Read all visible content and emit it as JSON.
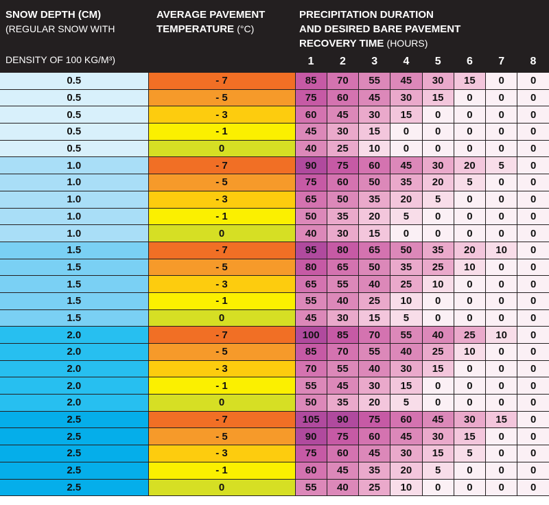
{
  "header": {
    "depth_title": "SNOW DEPTH (CM)",
    "depth_sub1": "(REGULAR SNOW WITH",
    "depth_sub2": "DENSITY OF 100 KG/M³)",
    "temp_title_line1": "AVERAGE PAVEMENT",
    "temp_title_line2": "TEMPERATURE",
    "temp_unit": "(°C)",
    "precip_line1": "PRECIPITATION DURATION",
    "precip_line2": "AND DESIRED BARE PAVEMENT",
    "precip_line3": "RECOVERY TIME",
    "precip_unit": "(HOURS)"
  },
  "hours": [
    "1",
    "2",
    "3",
    "4",
    "5",
    "6",
    "7",
    "8"
  ],
  "colors": {
    "header_bg": "#231f20",
    "depth": {
      "0.5": "#d8f0fb",
      "1.0": "#a9def7",
      "1.5": "#7ad0f4",
      "2.0": "#27bff0",
      "2.5": "#05aeea"
    },
    "temp": {
      "- 7": "#f16f25",
      "- 5": "#f69a2a",
      "- 3": "#fdcc0e",
      "- 1": "#fbf000",
      "0": "#d6df24"
    },
    "value_scale": {
      "0": "#fbf0f5",
      "low": "#f6d0e2",
      "mid": "#ea9dc5",
      "high": "#d46fab",
      "max": "#a6409a"
    }
  },
  "rows": [
    {
      "depth": "0.5",
      "temp": "- 7",
      "values": [
        "85",
        "70",
        "55",
        "45",
        "30",
        "15",
        "0",
        "0"
      ]
    },
    {
      "depth": "0.5",
      "temp": "- 5",
      "values": [
        "75",
        "60",
        "45",
        "30",
        "15",
        "0",
        "0",
        "0"
      ]
    },
    {
      "depth": "0.5",
      "temp": "- 3",
      "values": [
        "60",
        "45",
        "30",
        "15",
        "0",
        "0",
        "0",
        "0"
      ]
    },
    {
      "depth": "0.5",
      "temp": "- 1",
      "values": [
        "45",
        "30",
        "15",
        "0",
        "0",
        "0",
        "0",
        "0"
      ]
    },
    {
      "depth": "0.5",
      "temp": "0",
      "values": [
        "40",
        "25",
        "10",
        "0",
        "0",
        "0",
        "0",
        "0"
      ]
    },
    {
      "depth": "1.0",
      "temp": "- 7",
      "values": [
        "90",
        "75",
        "60",
        "45",
        "30",
        "20",
        "5",
        "0"
      ]
    },
    {
      "depth": "1.0",
      "temp": "- 5",
      "values": [
        "75",
        "60",
        "50",
        "35",
        "20",
        "5",
        "0",
        "0"
      ]
    },
    {
      "depth": "1.0",
      "temp": "- 3",
      "values": [
        "65",
        "50",
        "35",
        "20",
        "5",
        "0",
        "0",
        "0"
      ]
    },
    {
      "depth": "1.0",
      "temp": "- 1",
      "values": [
        "50",
        "35",
        "20",
        "5",
        "0",
        "0",
        "0",
        "0"
      ]
    },
    {
      "depth": "1.0",
      "temp": "0",
      "values": [
        "40",
        "30",
        "15",
        "0",
        "0",
        "0",
        "0",
        "0"
      ]
    },
    {
      "depth": "1.5",
      "temp": "- 7",
      "values": [
        "95",
        "80",
        "65",
        "50",
        "35",
        "20",
        "10",
        "0"
      ]
    },
    {
      "depth": "1.5",
      "temp": "- 5",
      "values": [
        "80",
        "65",
        "50",
        "35",
        "25",
        "10",
        "0",
        "0"
      ]
    },
    {
      "depth": "1.5",
      "temp": "- 3",
      "values": [
        "65",
        "55",
        "40",
        "25",
        "10",
        "0",
        "0",
        "0"
      ]
    },
    {
      "depth": "1.5",
      "temp": "- 1",
      "values": [
        "55",
        "40",
        "25",
        "10",
        "0",
        "0",
        "0",
        "0"
      ]
    },
    {
      "depth": "1.5",
      "temp": "0",
      "values": [
        "45",
        "30",
        "15",
        "5",
        "0",
        "0",
        "0",
        "0"
      ]
    },
    {
      "depth": "2.0",
      "temp": "- 7",
      "values": [
        "100",
        "85",
        "70",
        "55",
        "40",
        "25",
        "10",
        "0"
      ]
    },
    {
      "depth": "2.0",
      "temp": "- 5",
      "values": [
        "85",
        "70",
        "55",
        "40",
        "25",
        "10",
        "0",
        "0"
      ]
    },
    {
      "depth": "2.0",
      "temp": "- 3",
      "values": [
        "70",
        "55",
        "40",
        "30",
        "15",
        "0",
        "0",
        "0"
      ]
    },
    {
      "depth": "2.0",
      "temp": "- 1",
      "values": [
        "55",
        "45",
        "30",
        "15",
        "0",
        "0",
        "0",
        "0"
      ]
    },
    {
      "depth": "2.0",
      "temp": "0",
      "values": [
        "50",
        "35",
        "20",
        "5",
        "0",
        "0",
        "0",
        "0"
      ]
    },
    {
      "depth": "2.5",
      "temp": "- 7",
      "values": [
        "105",
        "90",
        "75",
        "60",
        "45",
        "30",
        "15",
        "0"
      ]
    },
    {
      "depth": "2.5",
      "temp": "- 5",
      "values": [
        "90",
        "75",
        "60",
        "45",
        "30",
        "15",
        "0",
        "0"
      ]
    },
    {
      "depth": "2.5",
      "temp": "- 3",
      "values": [
        "75",
        "60",
        "45",
        "30",
        "15",
        "5",
        "0",
        "0"
      ]
    },
    {
      "depth": "2.5",
      "temp": "- 1",
      "values": [
        "60",
        "45",
        "35",
        "20",
        "5",
        "0",
        "0",
        "0"
      ]
    },
    {
      "depth": "2.5",
      "temp": "0",
      "values": [
        "55",
        "40",
        "25",
        "10",
        "0",
        "0",
        "0",
        "0"
      ]
    }
  ]
}
